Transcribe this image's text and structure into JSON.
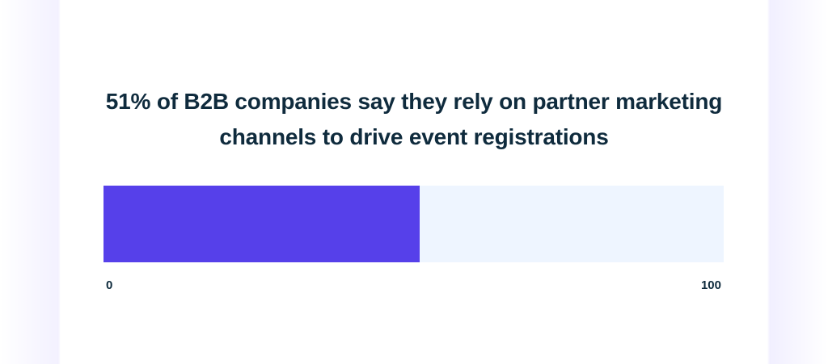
{
  "chart_data": {
    "type": "bar",
    "title": "51% of B2B companies say they rely on partner marketing channels to drive event registrations",
    "value": 51,
    "xlim": [
      0,
      100
    ],
    "tick_labels": [
      "0",
      "100"
    ],
    "colors": {
      "fill": "#5640ea",
      "track": "#eef5ff",
      "text": "#0f2b3d"
    }
  }
}
